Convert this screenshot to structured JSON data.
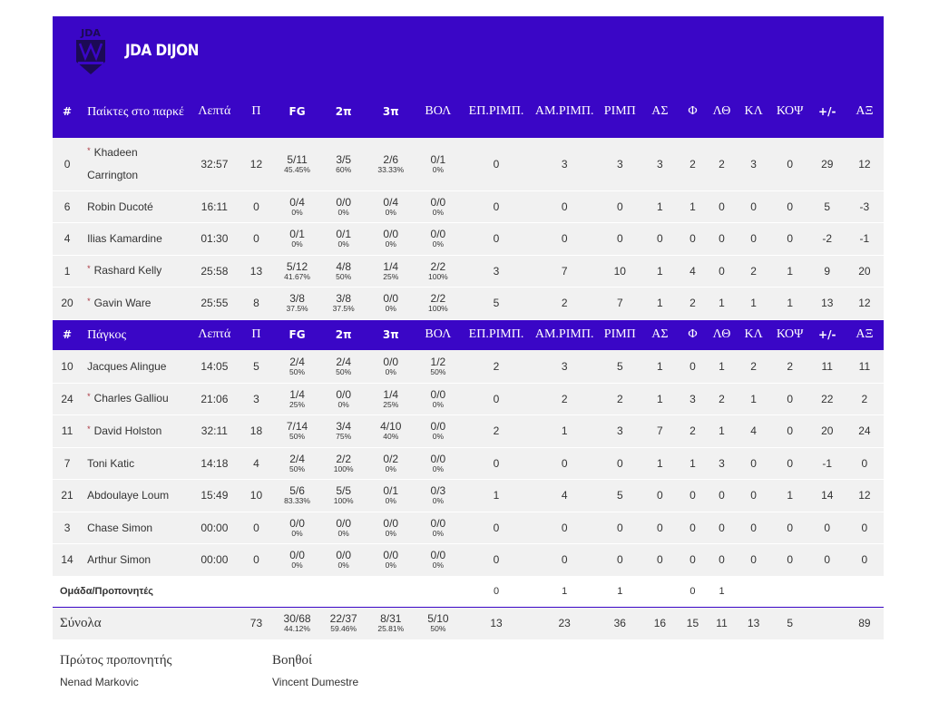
{
  "team": {
    "name": "JDA DIJON",
    "logo_text": "JDA"
  },
  "headers": {
    "starters": [
      "#",
      "Παίκτες στο παρκέ",
      "Λεπτά",
      "Π",
      "FG",
      "2π",
      "3π",
      "ΒΟΛ",
      "ΕΠ.ΡΙΜΠ.",
      "ΑΜ.ΡΙΜΠ.",
      "ΡΙΜΠ",
      "ΑΣ",
      "Φ",
      "ΛΘ",
      "ΚΛ",
      "ΚΟΨ",
      "+/-",
      "ΑΞ"
    ],
    "bench": [
      "#",
      "Πάγκος",
      "Λεπτά",
      "Π",
      "FG",
      "2π",
      "3π",
      "ΒΟΛ",
      "ΕΠ.ΡΙΜΠ.",
      "ΑΜ.ΡΙΜΠ.",
      "ΡΙΜΠ",
      "ΑΣ",
      "Φ",
      "ΛΘ",
      "ΚΛ",
      "ΚΟΨ",
      "+/-",
      "ΑΞ"
    ]
  },
  "starters": [
    {
      "num": "0",
      "name": "Khadeen Carrington",
      "star": true,
      "min": "32:57",
      "pts": "12",
      "fg": [
        "5/11",
        "45.45%"
      ],
      "p2": [
        "3/5",
        "60%"
      ],
      "p3": [
        "2/6",
        "33.33%"
      ],
      "ft": [
        "0/1",
        "0%"
      ],
      "oreb": "0",
      "dreb": "3",
      "reb": "3",
      "ast": "3",
      "pf": "2",
      "to": "2",
      "stl": "3",
      "blk": "0",
      "pm": "29",
      "eff": "12"
    },
    {
      "num": "6",
      "name": "Robin Ducoté",
      "star": false,
      "min": "16:11",
      "pts": "0",
      "fg": [
        "0/4",
        "0%"
      ],
      "p2": [
        "0/0",
        "0%"
      ],
      "p3": [
        "0/4",
        "0%"
      ],
      "ft": [
        "0/0",
        "0%"
      ],
      "oreb": "0",
      "dreb": "0",
      "reb": "0",
      "ast": "1",
      "pf": "1",
      "to": "0",
      "stl": "0",
      "blk": "0",
      "pm": "5",
      "eff": "-3"
    },
    {
      "num": "4",
      "name": "Ilias Kamardine",
      "star": false,
      "min": "01:30",
      "pts": "0",
      "fg": [
        "0/1",
        "0%"
      ],
      "p2": [
        "0/1",
        "0%"
      ],
      "p3": [
        "0/0",
        "0%"
      ],
      "ft": [
        "0/0",
        "0%"
      ],
      "oreb": "0",
      "dreb": "0",
      "reb": "0",
      "ast": "0",
      "pf": "0",
      "to": "0",
      "stl": "0",
      "blk": "0",
      "pm": "-2",
      "eff": "-1"
    },
    {
      "num": "1",
      "name": "Rashard Kelly",
      "star": true,
      "min": "25:58",
      "pts": "13",
      "fg": [
        "5/12",
        "41.67%"
      ],
      "p2": [
        "4/8",
        "50%"
      ],
      "p3": [
        "1/4",
        "25%"
      ],
      "ft": [
        "2/2",
        "100%"
      ],
      "oreb": "3",
      "dreb": "7",
      "reb": "10",
      "ast": "1",
      "pf": "4",
      "to": "0",
      "stl": "2",
      "blk": "1",
      "pm": "9",
      "eff": "20"
    },
    {
      "num": "20",
      "name": "Gavin Ware",
      "star": true,
      "min": "25:55",
      "pts": "8",
      "fg": [
        "3/8",
        "37.5%"
      ],
      "p2": [
        "3/8",
        "37.5%"
      ],
      "p3": [
        "0/0",
        "0%"
      ],
      "ft": [
        "2/2",
        "100%"
      ],
      "oreb": "5",
      "dreb": "2",
      "reb": "7",
      "ast": "1",
      "pf": "2",
      "to": "1",
      "stl": "1",
      "blk": "1",
      "pm": "13",
      "eff": "12"
    }
  ],
  "bench": [
    {
      "num": "10",
      "name": "Jacques Alingue",
      "star": false,
      "min": "14:05",
      "pts": "5",
      "fg": [
        "2/4",
        "50%"
      ],
      "p2": [
        "2/4",
        "50%"
      ],
      "p3": [
        "0/0",
        "0%"
      ],
      "ft": [
        "1/2",
        "50%"
      ],
      "oreb": "2",
      "dreb": "3",
      "reb": "5",
      "ast": "1",
      "pf": "0",
      "to": "1",
      "stl": "2",
      "blk": "2",
      "pm": "11",
      "eff": "11"
    },
    {
      "num": "24",
      "name": "Charles Galliou",
      "star": true,
      "min": "21:06",
      "pts": "3",
      "fg": [
        "1/4",
        "25%"
      ],
      "p2": [
        "0/0",
        "0%"
      ],
      "p3": [
        "1/4",
        "25%"
      ],
      "ft": [
        "0/0",
        "0%"
      ],
      "oreb": "0",
      "dreb": "2",
      "reb": "2",
      "ast": "1",
      "pf": "3",
      "to": "2",
      "stl": "1",
      "blk": "0",
      "pm": "22",
      "eff": "2"
    },
    {
      "num": "11",
      "name": "David Holston",
      "star": true,
      "min": "32:11",
      "pts": "18",
      "fg": [
        "7/14",
        "50%"
      ],
      "p2": [
        "3/4",
        "75%"
      ],
      "p3": [
        "4/10",
        "40%"
      ],
      "ft": [
        "0/0",
        "0%"
      ],
      "oreb": "2",
      "dreb": "1",
      "reb": "3",
      "ast": "7",
      "pf": "2",
      "to": "1",
      "stl": "4",
      "blk": "0",
      "pm": "20",
      "eff": "24"
    },
    {
      "num": "7",
      "name": "Toni Katic",
      "star": false,
      "min": "14:18",
      "pts": "4",
      "fg": [
        "2/4",
        "50%"
      ],
      "p2": [
        "2/2",
        "100%"
      ],
      "p3": [
        "0/2",
        "0%"
      ],
      "ft": [
        "0/0",
        "0%"
      ],
      "oreb": "0",
      "dreb": "0",
      "reb": "0",
      "ast": "1",
      "pf": "1",
      "to": "3",
      "stl": "0",
      "blk": "0",
      "pm": "-1",
      "eff": "0"
    },
    {
      "num": "21",
      "name": "Abdoulaye Loum",
      "star": false,
      "min": "15:49",
      "pts": "10",
      "fg": [
        "5/6",
        "83.33%"
      ],
      "p2": [
        "5/5",
        "100%"
      ],
      "p3": [
        "0/1",
        "0%"
      ],
      "ft": [
        "0/3",
        "0%"
      ],
      "oreb": "1",
      "dreb": "4",
      "reb": "5",
      "ast": "0",
      "pf": "0",
      "to": "0",
      "stl": "0",
      "blk": "1",
      "pm": "14",
      "eff": "12"
    },
    {
      "num": "3",
      "name": "Chase Simon",
      "star": false,
      "min": "00:00",
      "pts": "0",
      "fg": [
        "0/0",
        "0%"
      ],
      "p2": [
        "0/0",
        "0%"
      ],
      "p3": [
        "0/0",
        "0%"
      ],
      "ft": [
        "0/0",
        "0%"
      ],
      "oreb": "0",
      "dreb": "0",
      "reb": "0",
      "ast": "0",
      "pf": "0",
      "to": "0",
      "stl": "0",
      "blk": "0",
      "pm": "0",
      "eff": "0"
    },
    {
      "num": "14",
      "name": "Arthur Simon",
      "star": false,
      "min": "00:00",
      "pts": "0",
      "fg": [
        "0/0",
        "0%"
      ],
      "p2": [
        "0/0",
        "0%"
      ],
      "p3": [
        "0/0",
        "0%"
      ],
      "ft": [
        "0/0",
        "0%"
      ],
      "oreb": "0",
      "dreb": "0",
      "reb": "0",
      "ast": "0",
      "pf": "0",
      "to": "0",
      "stl": "0",
      "blk": "0",
      "pm": "0",
      "eff": "0"
    }
  ],
  "team_row": {
    "label": "Ομάδα/Προπονητές",
    "oreb": "0",
    "dreb": "1",
    "reb": "1",
    "ast": "",
    "pf": "0",
    "to": "1",
    "stl": "",
    "blk": "",
    "pm": "",
    "eff": ""
  },
  "totals": {
    "label": "Σύνολα",
    "pts": "73",
    "fg": [
      "30/68",
      "44.12%"
    ],
    "p2": [
      "22/37",
      "59.46%"
    ],
    "p3": [
      "8/31",
      "25.81%"
    ],
    "ft": [
      "5/10",
      "50%"
    ],
    "oreb": "13",
    "dreb": "23",
    "reb": "36",
    "ast": "16",
    "pf": "15",
    "to": "11",
    "stl": "13",
    "blk": "5",
    "pm": "",
    "eff": "89"
  },
  "coaches": {
    "head_label": "Πρώτος προπονητής",
    "head_name": "Nenad Markovic",
    "assist_label": "Βοηθοί",
    "assist_name": "Vincent Dumestre"
  },
  "colors": {
    "header_bg": "#3a06c6",
    "player_link": "#a8323c",
    "row_shade": "#f1f1f1"
  }
}
